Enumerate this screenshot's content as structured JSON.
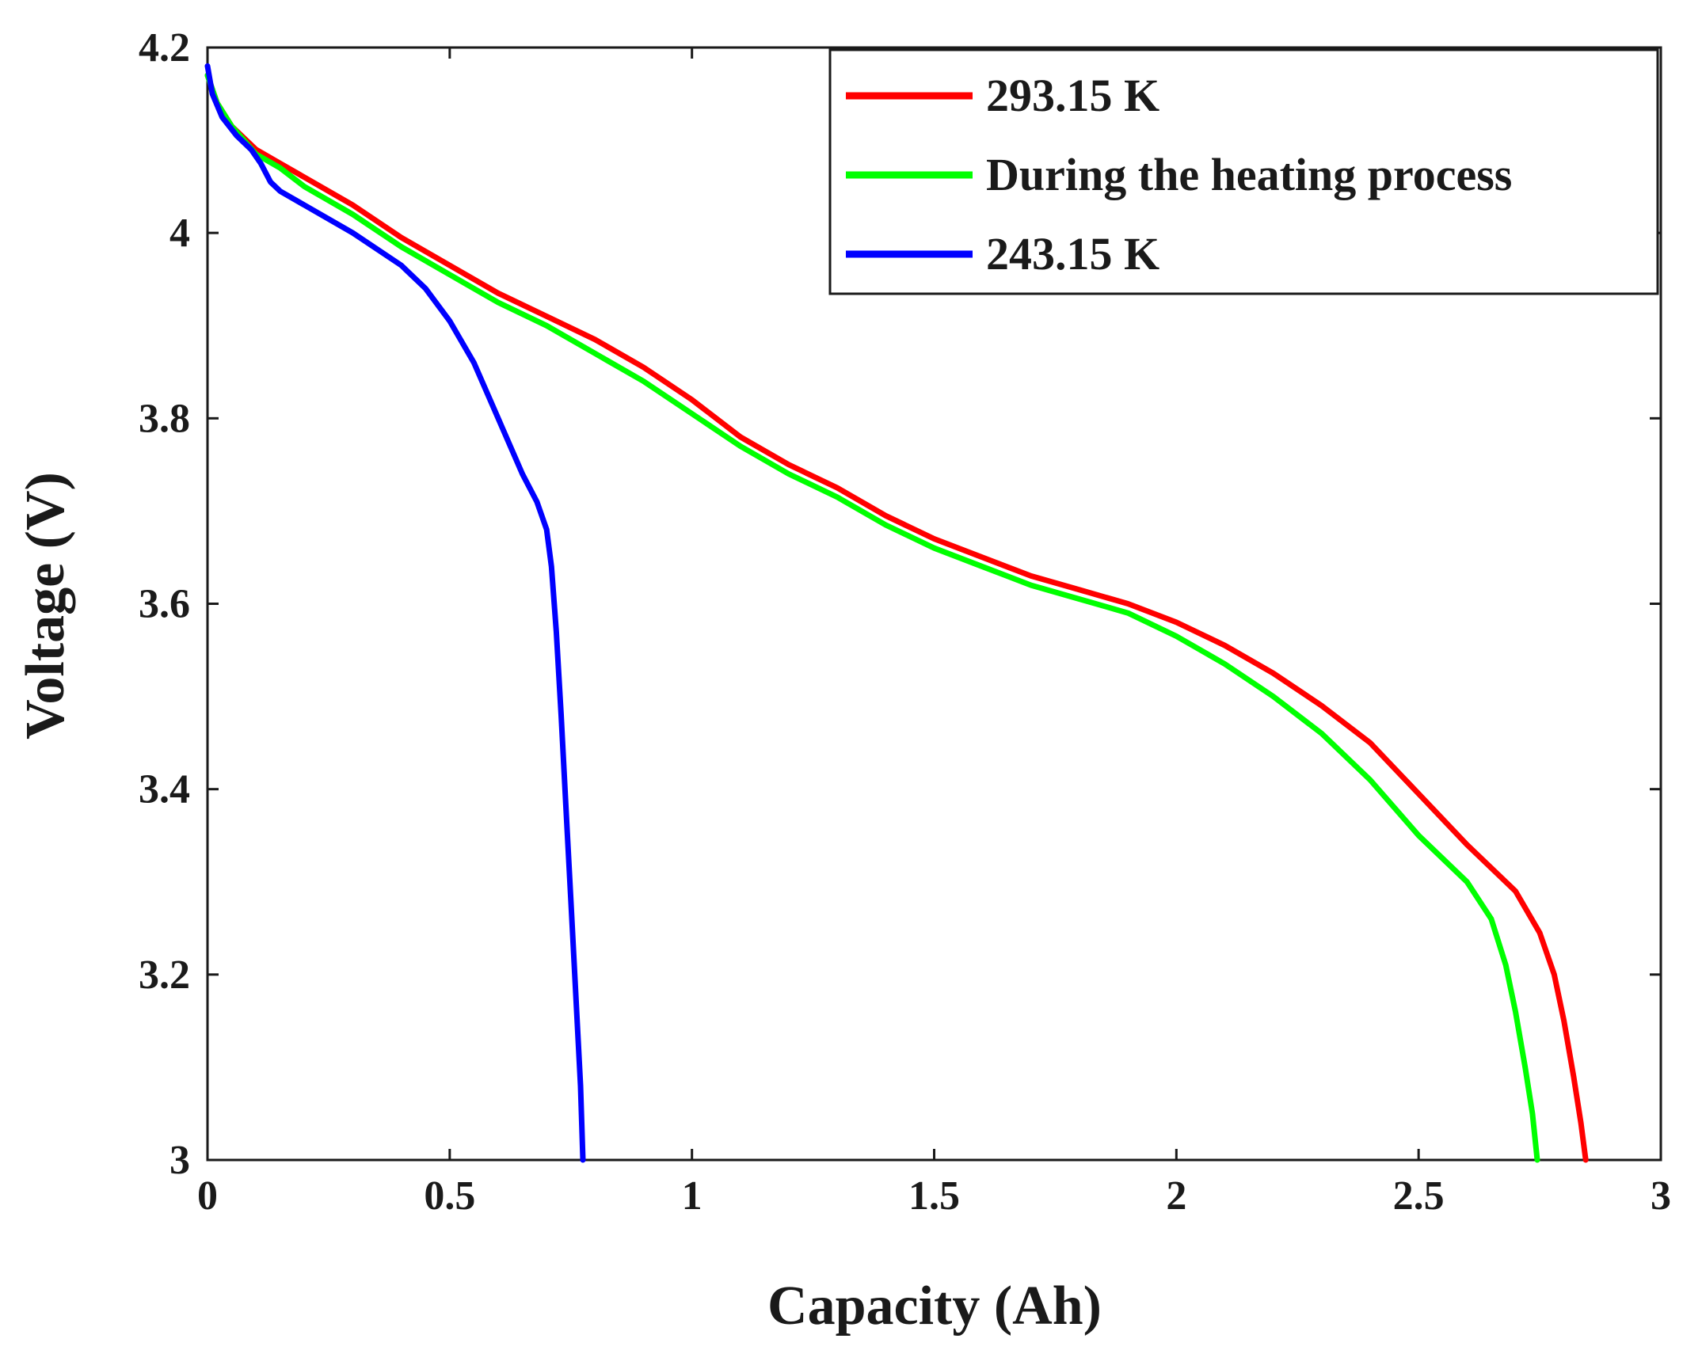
{
  "chart_data": {
    "type": "line",
    "title": "",
    "xlabel": "Capacity (Ah)",
    "ylabel": "Voltage (V)",
    "xlim": [
      0,
      3
    ],
    "ylim": [
      3,
      4.2
    ],
    "x_ticks": [
      {
        "value": 0,
        "label": "0"
      },
      {
        "value": 0.5,
        "label": "0.5"
      },
      {
        "value": 1,
        "label": "1"
      },
      {
        "value": 1.5,
        "label": "1.5"
      },
      {
        "value": 2,
        "label": "2"
      },
      {
        "value": 2.5,
        "label": "2.5"
      },
      {
        "value": 3,
        "label": "3"
      }
    ],
    "y_ticks": [
      {
        "value": 3,
        "label": "3"
      },
      {
        "value": 3.2,
        "label": "3.2"
      },
      {
        "value": 3.4,
        "label": "3.4"
      },
      {
        "value": 3.6,
        "label": "3.6"
      },
      {
        "value": 3.8,
        "label": "3.8"
      },
      {
        "value": 4,
        "label": "4"
      },
      {
        "value": 4.2,
        "label": "4.2"
      }
    ],
    "grid": false,
    "legend_position": "top-right",
    "series": [
      {
        "name": "293.15 K",
        "color": "#ff0000",
        "points": [
          [
            0,
            4.17
          ],
          [
            0.02,
            4.14
          ],
          [
            0.05,
            4.115
          ],
          [
            0.1,
            4.09
          ],
          [
            0.15,
            4.075
          ],
          [
            0.2,
            4.06
          ],
          [
            0.3,
            4.03
          ],
          [
            0.4,
            3.995
          ],
          [
            0.5,
            3.965
          ],
          [
            0.6,
            3.935
          ],
          [
            0.7,
            3.91
          ],
          [
            0.8,
            3.885
          ],
          [
            0.9,
            3.855
          ],
          [
            1.0,
            3.82
          ],
          [
            1.1,
            3.78
          ],
          [
            1.2,
            3.75
          ],
          [
            1.3,
            3.725
          ],
          [
            1.4,
            3.695
          ],
          [
            1.5,
            3.67
          ],
          [
            1.6,
            3.65
          ],
          [
            1.7,
            3.63
          ],
          [
            1.8,
            3.615
          ],
          [
            1.9,
            3.6
          ],
          [
            2.0,
            3.58
          ],
          [
            2.1,
            3.555
          ],
          [
            2.2,
            3.525
          ],
          [
            2.3,
            3.49
          ],
          [
            2.4,
            3.45
          ],
          [
            2.5,
            3.395
          ],
          [
            2.6,
            3.34
          ],
          [
            2.7,
            3.29
          ],
          [
            2.75,
            3.245
          ],
          [
            2.78,
            3.2
          ],
          [
            2.8,
            3.15
          ],
          [
            2.82,
            3.09
          ],
          [
            2.835,
            3.04
          ],
          [
            2.845,
            3.0
          ]
        ]
      },
      {
        "name": "During the heating process",
        "color": "#00ff00",
        "points": [
          [
            0,
            4.17
          ],
          [
            0.02,
            4.14
          ],
          [
            0.05,
            4.115
          ],
          [
            0.1,
            4.085
          ],
          [
            0.15,
            4.07
          ],
          [
            0.2,
            4.05
          ],
          [
            0.3,
            4.02
          ],
          [
            0.4,
            3.985
          ],
          [
            0.5,
            3.955
          ],
          [
            0.6,
            3.925
          ],
          [
            0.7,
            3.9
          ],
          [
            0.8,
            3.87
          ],
          [
            0.9,
            3.84
          ],
          [
            1.0,
            3.805
          ],
          [
            1.1,
            3.77
          ],
          [
            1.2,
            3.74
          ],
          [
            1.3,
            3.715
          ],
          [
            1.4,
            3.685
          ],
          [
            1.5,
            3.66
          ],
          [
            1.6,
            3.64
          ],
          [
            1.7,
            3.62
          ],
          [
            1.8,
            3.605
          ],
          [
            1.9,
            3.59
          ],
          [
            2.0,
            3.565
          ],
          [
            2.1,
            3.535
          ],
          [
            2.2,
            3.5
          ],
          [
            2.3,
            3.46
          ],
          [
            2.4,
            3.41
          ],
          [
            2.5,
            3.35
          ],
          [
            2.6,
            3.3
          ],
          [
            2.65,
            3.26
          ],
          [
            2.68,
            3.21
          ],
          [
            2.7,
            3.16
          ],
          [
            2.72,
            3.1
          ],
          [
            2.735,
            3.05
          ],
          [
            2.745,
            3.0
          ]
        ]
      },
      {
        "name": "243.15 K",
        "color": "#0000ff",
        "points": [
          [
            0,
            4.18
          ],
          [
            0.01,
            4.15
          ],
          [
            0.03,
            4.125
          ],
          [
            0.06,
            4.105
          ],
          [
            0.09,
            4.09
          ],
          [
            0.11,
            4.075
          ],
          [
            0.13,
            4.055
          ],
          [
            0.15,
            4.045
          ],
          [
            0.2,
            4.03
          ],
          [
            0.3,
            4.0
          ],
          [
            0.4,
            3.965
          ],
          [
            0.45,
            3.94
          ],
          [
            0.5,
            3.905
          ],
          [
            0.55,
            3.86
          ],
          [
            0.6,
            3.8
          ],
          [
            0.65,
            3.74
          ],
          [
            0.68,
            3.71
          ],
          [
            0.7,
            3.68
          ],
          [
            0.71,
            3.64
          ],
          [
            0.72,
            3.57
          ],
          [
            0.73,
            3.48
          ],
          [
            0.74,
            3.38
          ],
          [
            0.75,
            3.28
          ],
          [
            0.76,
            3.18
          ],
          [
            0.77,
            3.08
          ],
          [
            0.775,
            3.0
          ]
        ]
      }
    ]
  }
}
